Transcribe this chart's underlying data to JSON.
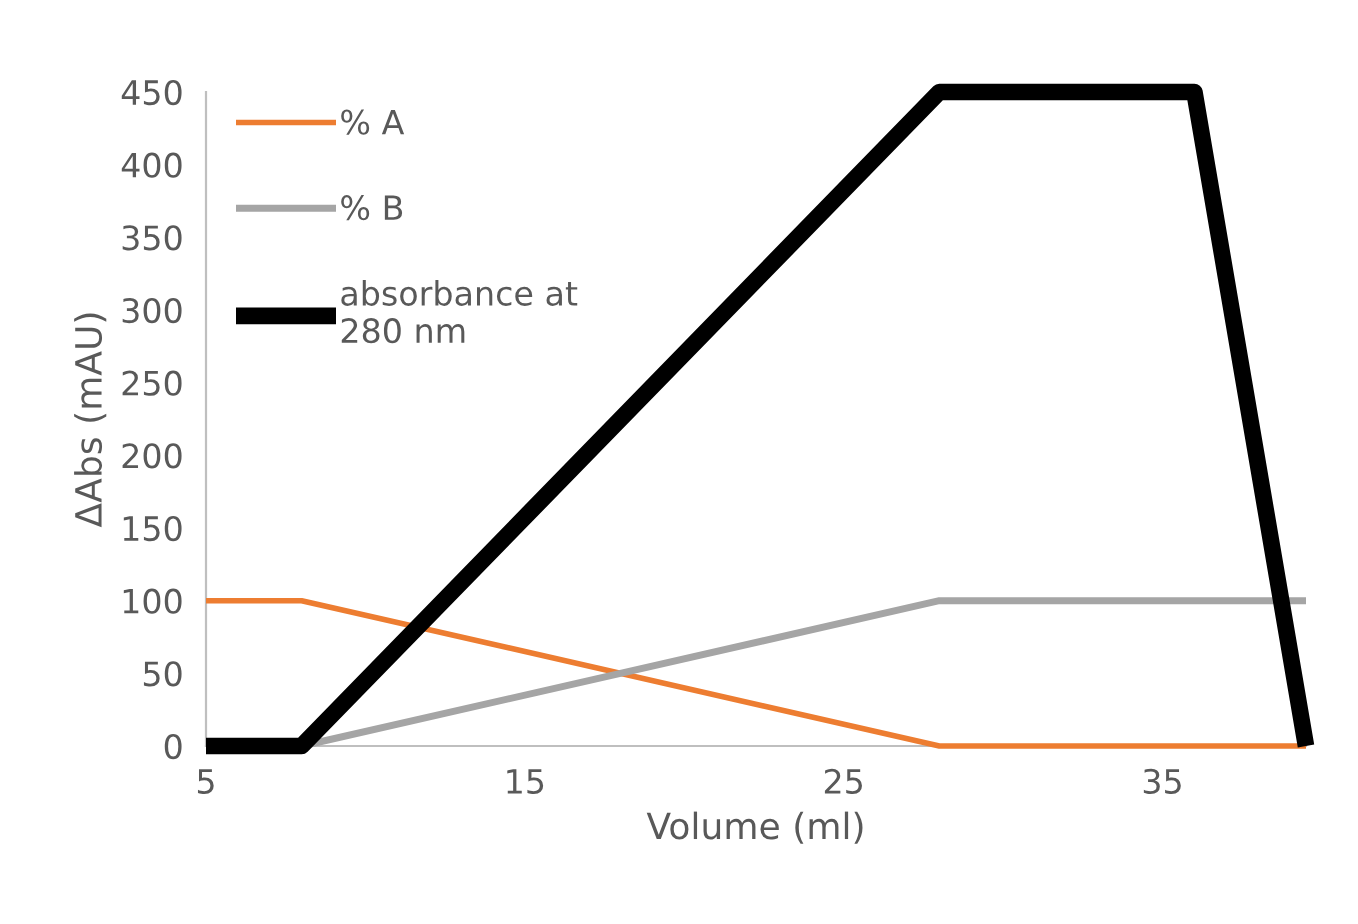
{
  "chart_data": {
    "type": "line",
    "xlabel": "Volume (ml)",
    "ylabel": "ΔAbs (mAU)",
    "xlim": [
      5,
      39.5
    ],
    "xticks": [
      5,
      15,
      25,
      35
    ],
    "ylim": [
      0,
      450
    ],
    "yticks": [
      0,
      50,
      100,
      150,
      200,
      250,
      300,
      350,
      400,
      450
    ],
    "grid": false,
    "legend": "top left",
    "marker": "none",
    "line_style": "solid",
    "series": [
      {
        "name": "% A",
        "color": "#ed7d31",
        "x": [
          5,
          8,
          28,
          39.5
        ],
        "values": [
          100,
          100,
          0,
          0
        ]
      },
      {
        "name": "% B",
        "color": "#a5a5a5",
        "x": [
          8,
          28,
          39.5
        ],
        "values": [
          0,
          100,
          100
        ]
      },
      {
        "name": "absorbance at\n280 nm",
        "color": "#000000",
        "x": [
          5,
          8,
          28,
          36,
          39.5
        ],
        "values": [
          0,
          0,
          450,
          450,
          0
        ]
      }
    ]
  }
}
